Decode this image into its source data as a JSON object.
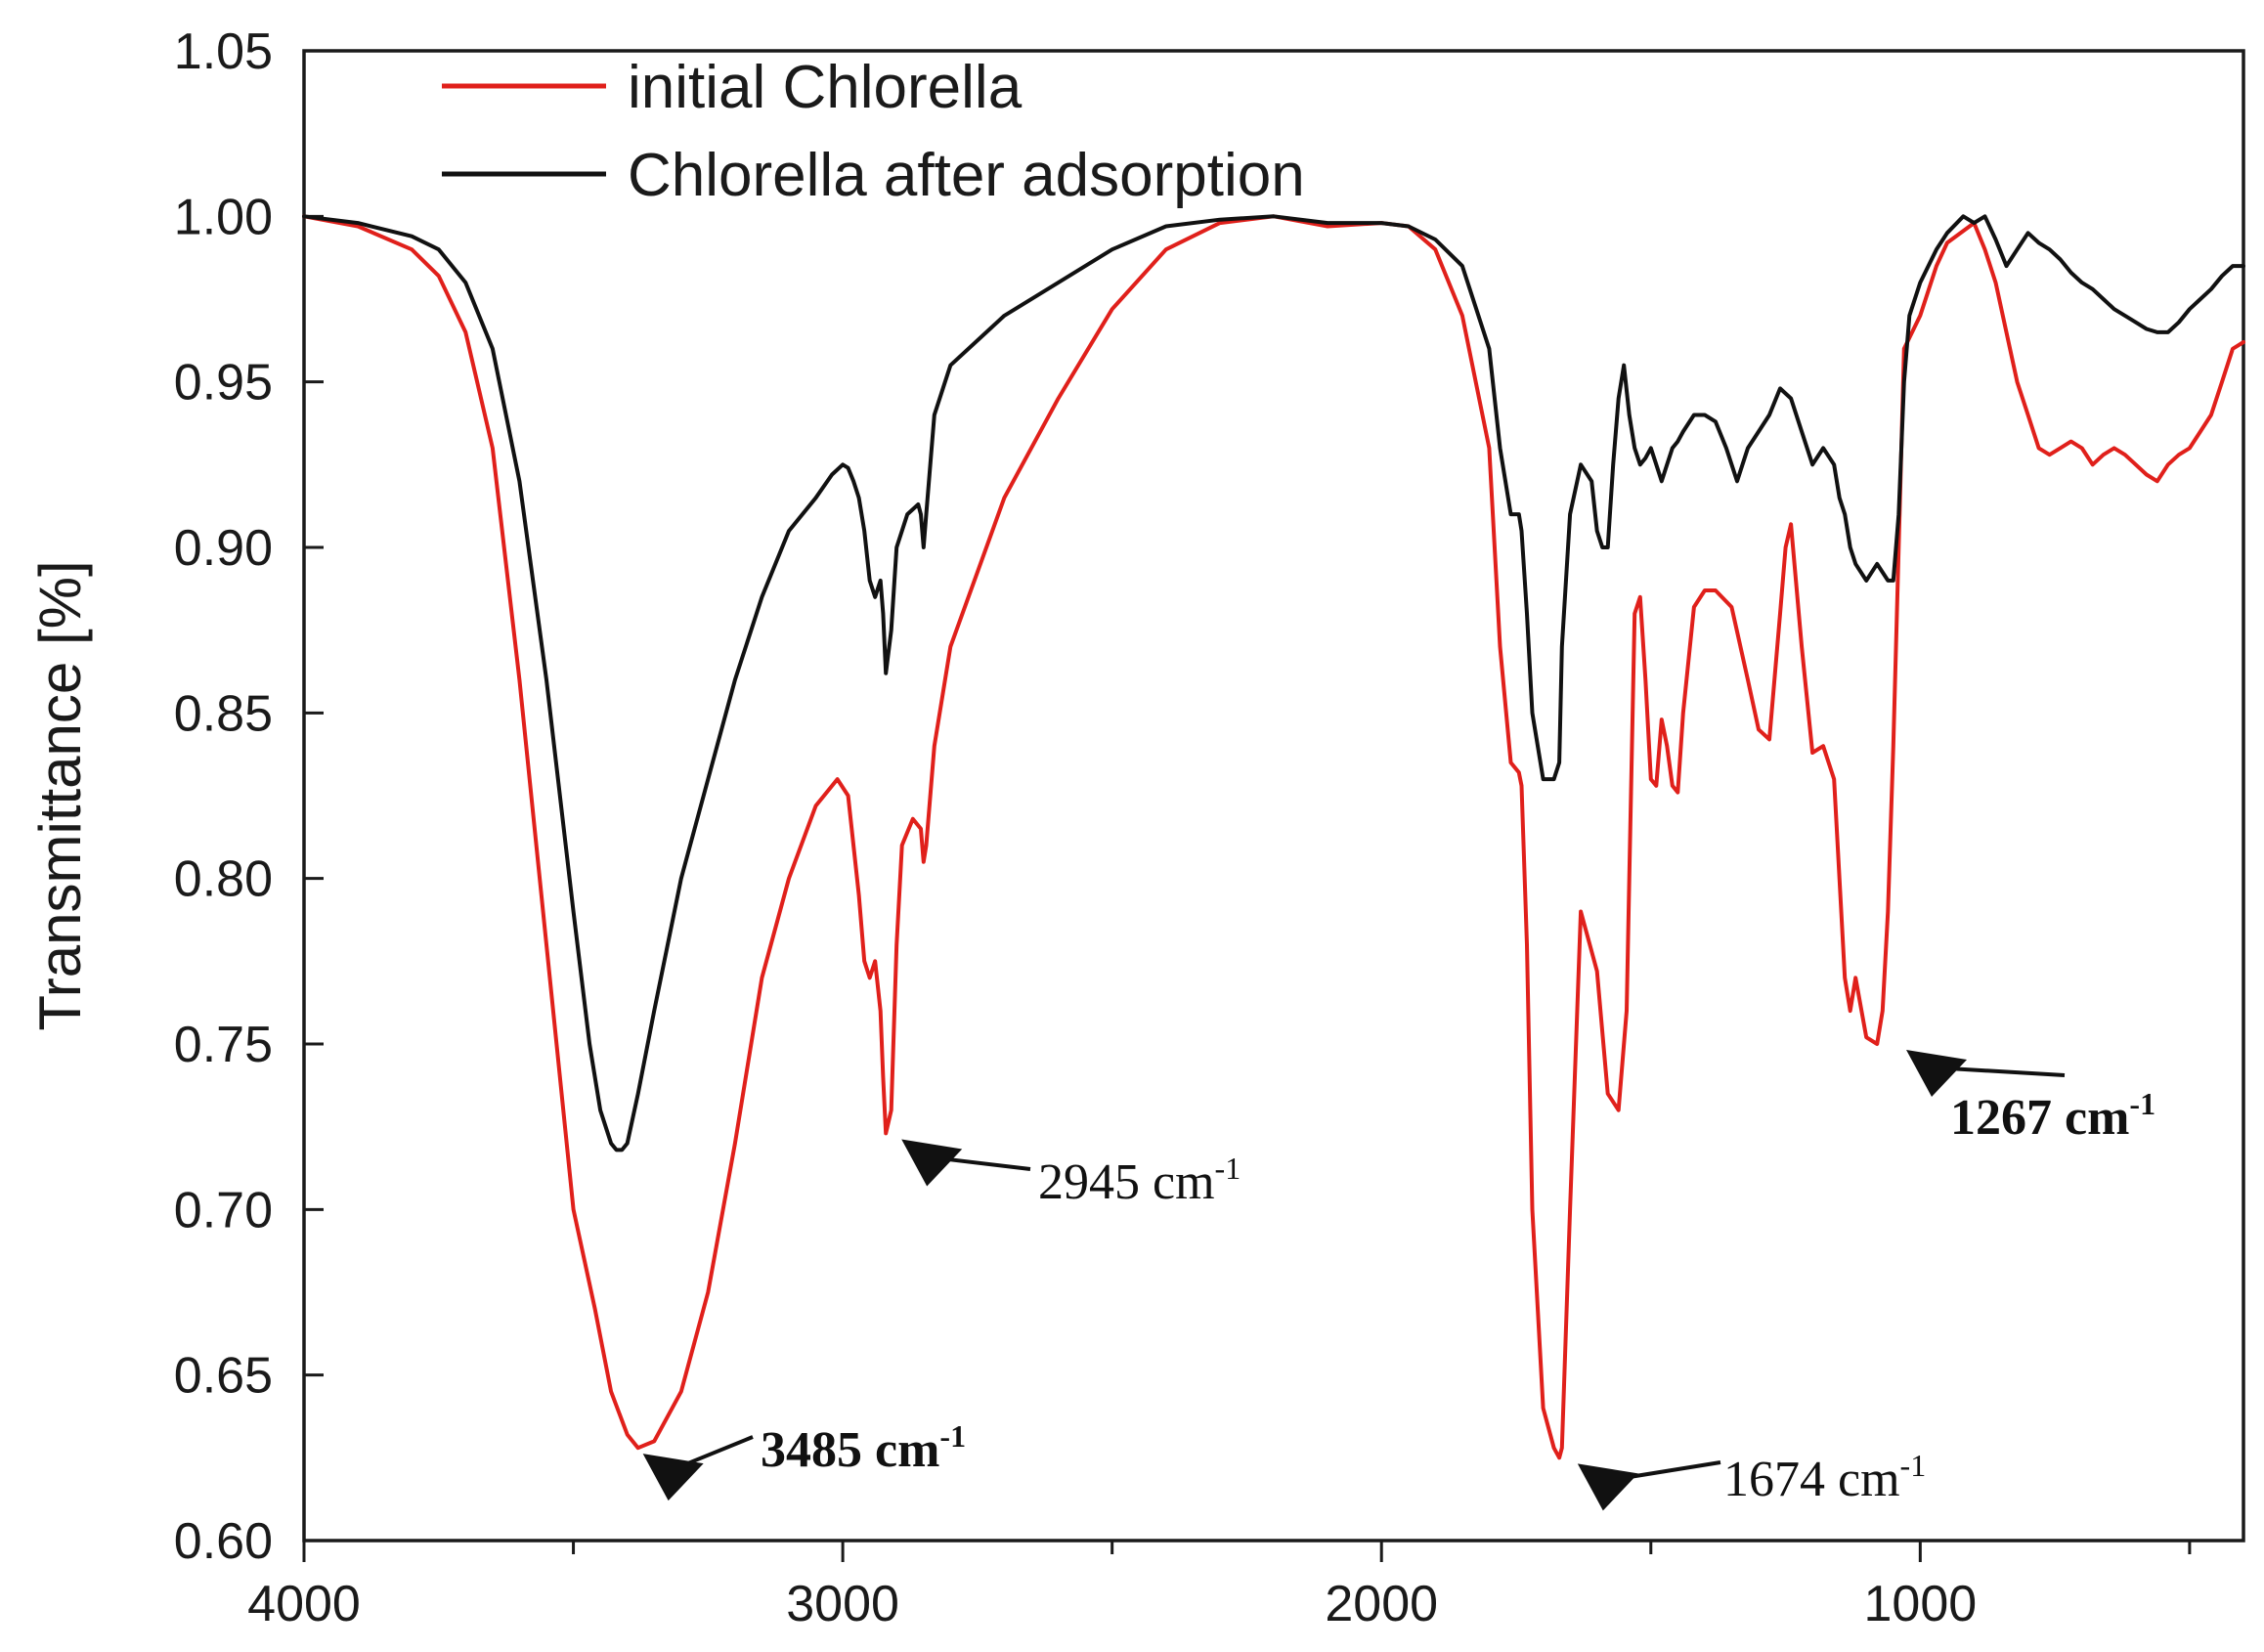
{
  "chart_data": {
    "type": "line",
    "title": "",
    "xlabel": "",
    "ylabel": "Transmittance [%]",
    "xlim": [
      4000,
      400
    ],
    "ylim": [
      0.6,
      1.05
    ],
    "x_reversed": true,
    "x_ticks": [
      4000,
      3000,
      2000,
      1000
    ],
    "x_tick_labels": [
      "4000",
      "3000",
      "2000",
      "1000"
    ],
    "x_minor_ticks": [
      3500,
      2500,
      1500,
      500
    ],
    "y_ticks": [
      0.6,
      0.65,
      0.7,
      0.75,
      0.8,
      0.85,
      0.9,
      0.95,
      1.0,
      1.05
    ],
    "y_tick_labels": [
      "0.60",
      "0.65",
      "0.70",
      "0.75",
      "0.80",
      "0.85",
      "0.90",
      "0.95",
      "1.00",
      "1.05"
    ],
    "grid": false,
    "legend_position": "top-left",
    "series": [
      {
        "name": "initial Chlorella",
        "color": "#e0201b",
        "x": [
          4000,
          3900,
          3800,
          3750,
          3700,
          3650,
          3600,
          3550,
          3500,
          3460,
          3430,
          3400,
          3380,
          3350,
          3300,
          3250,
          3200,
          3150,
          3100,
          3050,
          3010,
          2990,
          2970,
          2960,
          2950,
          2940,
          2930,
          2925,
          2920,
          2910,
          2900,
          2890,
          2870,
          2855,
          2850,
          2845,
          2830,
          2800,
          2700,
          2600,
          2500,
          2400,
          2300,
          2200,
          2100,
          2000,
          1950,
          1900,
          1850,
          1800,
          1780,
          1760,
          1745,
          1740,
          1730,
          1720,
          1700,
          1680,
          1670,
          1665,
          1650,
          1630,
          1600,
          1580,
          1560,
          1545,
          1540,
          1530,
          1520,
          1510,
          1500,
          1490,
          1480,
          1470,
          1460,
          1450,
          1440,
          1420,
          1400,
          1380,
          1350,
          1320,
          1300,
          1280,
          1260,
          1250,
          1240,
          1220,
          1200,
          1180,
          1160,
          1150,
          1140,
          1130,
          1120,
          1100,
          1080,
          1070,
          1060,
          1050,
          1040,
          1030,
          1000,
          970,
          950,
          900,
          880,
          860,
          840,
          820,
          800,
          780,
          760,
          740,
          720,
          700,
          680,
          660,
          640,
          620,
          600,
          580,
          560,
          540,
          520,
          500,
          480,
          460,
          440,
          420,
          400
        ],
        "y": [
          1.0,
          0.997,
          0.99,
          0.982,
          0.965,
          0.93,
          0.86,
          0.78,
          0.7,
          0.67,
          0.645,
          0.632,
          0.628,
          0.63,
          0.645,
          0.675,
          0.72,
          0.77,
          0.8,
          0.822,
          0.83,
          0.825,
          0.795,
          0.775,
          0.77,
          0.775,
          0.76,
          0.74,
          0.723,
          0.73,
          0.78,
          0.81,
          0.818,
          0.815,
          0.805,
          0.81,
          0.84,
          0.87,
          0.915,
          0.945,
          0.972,
          0.99,
          0.998,
          1.0,
          0.997,
          0.998,
          0.997,
          0.99,
          0.97,
          0.93,
          0.87,
          0.835,
          0.832,
          0.828,
          0.78,
          0.7,
          0.64,
          0.628,
          0.625,
          0.628,
          0.7,
          0.79,
          0.772,
          0.735,
          0.73,
          0.76,
          0.8,
          0.88,
          0.885,
          0.86,
          0.83,
          0.828,
          0.848,
          0.84,
          0.828,
          0.826,
          0.85,
          0.882,
          0.887,
          0.887,
          0.882,
          0.86,
          0.845,
          0.842,
          0.88,
          0.9,
          0.907,
          0.87,
          0.838,
          0.84,
          0.83,
          0.8,
          0.77,
          0.76,
          0.77,
          0.752,
          0.75,
          0.76,
          0.79,
          0.84,
          0.9,
          0.96,
          0.97,
          0.985,
          0.992,
          0.998,
          0.99,
          0.98,
          0.965,
          0.95,
          0.94,
          0.93,
          0.928,
          0.93,
          0.932,
          0.93,
          0.925,
          0.928,
          0.93,
          0.928,
          0.925,
          0.922,
          0.92,
          0.925,
          0.928,
          0.93,
          0.935,
          0.94,
          0.95,
          0.96,
          0.962
        ]
      },
      {
        "name": "Chlorella after adsorption",
        "color": "#111111",
        "x": [
          4000,
          3900,
          3800,
          3750,
          3700,
          3650,
          3600,
          3550,
          3500,
          3470,
          3450,
          3430,
          3420,
          3410,
          3400,
          3380,
          3350,
          3300,
          3250,
          3200,
          3150,
          3100,
          3050,
          3020,
          3000,
          2990,
          2980,
          2970,
          2960,
          2950,
          2940,
          2930,
          2925,
          2920,
          2910,
          2900,
          2880,
          2860,
          2855,
          2850,
          2845,
          2830,
          2800,
          2700,
          2600,
          2500,
          2400,
          2300,
          2200,
          2100,
          2000,
          1950,
          1900,
          1850,
          1800,
          1780,
          1760,
          1745,
          1740,
          1730,
          1720,
          1700,
          1680,
          1670,
          1665,
          1650,
          1630,
          1610,
          1600,
          1590,
          1580,
          1570,
          1560,
          1550,
          1540,
          1530,
          1520,
          1510,
          1500,
          1490,
          1480,
          1470,
          1460,
          1450,
          1440,
          1420,
          1400,
          1380,
          1360,
          1340,
          1320,
          1300,
          1280,
          1260,
          1240,
          1220,
          1200,
          1180,
          1160,
          1150,
          1140,
          1130,
          1120,
          1100,
          1080,
          1060,
          1050,
          1040,
          1030,
          1020,
          1000,
          970,
          950,
          920,
          900,
          880,
          860,
          840,
          820,
          800,
          780,
          760,
          740,
          720,
          700,
          680,
          660,
          640,
          620,
          600,
          580,
          560,
          540,
          520,
          500,
          480,
          460,
          440,
          420,
          400
        ],
        "y": [
          1.0,
          0.998,
          0.994,
          0.99,
          0.98,
          0.96,
          0.92,
          0.86,
          0.79,
          0.75,
          0.73,
          0.72,
          0.718,
          0.718,
          0.72,
          0.735,
          0.76,
          0.8,
          0.83,
          0.86,
          0.885,
          0.905,
          0.915,
          0.922,
          0.925,
          0.924,
          0.92,
          0.915,
          0.905,
          0.89,
          0.885,
          0.89,
          0.88,
          0.862,
          0.875,
          0.9,
          0.91,
          0.913,
          0.91,
          0.9,
          0.91,
          0.94,
          0.955,
          0.97,
          0.98,
          0.99,
          0.997,
          0.999,
          1.0,
          0.998,
          0.998,
          0.997,
          0.993,
          0.985,
          0.96,
          0.93,
          0.91,
          0.91,
          0.905,
          0.88,
          0.85,
          0.83,
          0.83,
          0.835,
          0.87,
          0.91,
          0.925,
          0.92,
          0.905,
          0.9,
          0.9,
          0.925,
          0.945,
          0.955,
          0.94,
          0.93,
          0.925,
          0.927,
          0.93,
          0.925,
          0.92,
          0.925,
          0.93,
          0.932,
          0.935,
          0.94,
          0.94,
          0.938,
          0.93,
          0.92,
          0.93,
          0.935,
          0.94,
          0.948,
          0.945,
          0.935,
          0.925,
          0.93,
          0.925,
          0.915,
          0.91,
          0.9,
          0.895,
          0.89,
          0.895,
          0.89,
          0.89,
          0.91,
          0.95,
          0.97,
          0.98,
          0.99,
          0.995,
          1.0,
          0.998,
          1.0,
          0.993,
          0.985,
          0.99,
          0.995,
          0.992,
          0.99,
          0.987,
          0.983,
          0.98,
          0.978,
          0.975,
          0.972,
          0.97,
          0.968,
          0.966,
          0.965,
          0.965,
          0.968,
          0.972,
          0.975,
          0.978,
          0.982,
          0.985,
          0.985
        ]
      }
    ],
    "annotations": [
      {
        "text": "3485 cm",
        "sup": "-1",
        "x": 3400,
        "y": 0.628,
        "bold": true
      },
      {
        "text": "2945 cm",
        "sup": "-1",
        "x": 2920,
        "y": 0.723,
        "bold": false
      },
      {
        "text": "1674 cm",
        "sup": "-1",
        "x": 1665,
        "y": 0.625,
        "bold": false
      },
      {
        "text": "1267 cm",
        "sup": "-1",
        "x": 1055,
        "y": 0.75,
        "bold": true
      }
    ]
  }
}
